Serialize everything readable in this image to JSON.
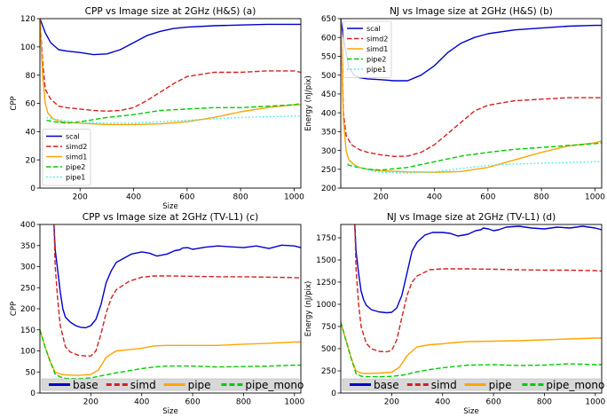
{
  "chart_data": [
    {
      "type": "line",
      "title": "CPP vs Image size at 2GHz (H&S) (a)",
      "xlabel": "Size",
      "ylabel": "CPP",
      "xlim": [
        50,
        1025
      ],
      "ylim": [
        0,
        120
      ],
      "xticks": [
        200,
        400,
        600,
        800,
        1000
      ],
      "yticks": [
        0,
        20,
        40,
        60,
        80,
        100,
        120
      ],
      "legend": "lower-left",
      "series": [
        {
          "name": "scal",
          "color": "#0000cc",
          "dash": "solid",
          "x": [
            50,
            70,
            90,
            120,
            150,
            200,
            250,
            300,
            350,
            400,
            450,
            500,
            550,
            600,
            700,
            800,
            900,
            1000,
            1025
          ],
          "y": [
            120,
            110,
            103,
            98,
            97,
            96,
            94.5,
            95,
            98,
            103,
            108,
            111,
            113,
            114,
            115,
            115.5,
            116,
            116,
            116
          ]
        },
        {
          "name": "simd2",
          "color": "#d62020",
          "dash": "dashed",
          "x": [
            50,
            60,
            70,
            90,
            120,
            150,
            200,
            250,
            300,
            350,
            400,
            450,
            500,
            550,
            600,
            700,
            800,
            900,
            1000,
            1025
          ],
          "y": [
            120,
            90,
            70,
            63,
            58,
            57,
            56,
            55,
            54.5,
            55,
            57,
            62,
            68,
            74,
            79,
            82,
            82,
            83,
            83,
            82
          ]
        },
        {
          "name": "simd1",
          "color": "#ffa500",
          "dash": "solid",
          "x": [
            50,
            60,
            70,
            80,
            100,
            120,
            150,
            200,
            300,
            400,
            500,
            600,
            700,
            800,
            900,
            1000,
            1025
          ],
          "y": [
            120,
            80,
            60,
            53,
            49,
            47.5,
            46.5,
            46,
            45,
            45,
            45.5,
            47,
            50,
            54,
            57,
            59,
            59
          ]
        },
        {
          "name": "pipe2",
          "color": "#00cc00",
          "dash": "dashed",
          "x": [
            75,
            100,
            150,
            200,
            300,
            400,
            500,
            600,
            700,
            800,
            900,
            1000,
            1025
          ],
          "y": [
            48,
            47,
            46,
            47,
            50,
            52,
            55,
            56,
            57,
            57,
            58,
            59,
            60
          ]
        },
        {
          "name": "pipe1",
          "color": "#33eeee",
          "dash": "dotted",
          "x": [
            75,
            100,
            150,
            200,
            300,
            400,
            500,
            600,
            700,
            800,
            900,
            1000,
            1025
          ],
          "y": [
            50,
            49,
            47.5,
            46.5,
            46,
            46,
            47,
            48,
            49,
            50,
            50.5,
            51,
            51
          ]
        }
      ]
    },
    {
      "type": "line",
      "title": "NJ vs Image size at 2GHz (H&S) (b)",
      "xlabel": "",
      "ylabel": "Energy (nJ/pix)",
      "xlim": [
        50,
        1025
      ],
      "ylim": [
        200,
        650
      ],
      "xticks": [
        200,
        400,
        600,
        800,
        1000
      ],
      "yticks": [
        200,
        250,
        300,
        350,
        400,
        450,
        500,
        550,
        600,
        650
      ],
      "legend": "upper-left",
      "series": [
        {
          "name": "scal",
          "color": "#0000cc",
          "dash": "solid",
          "x": [
            50,
            60,
            70,
            80,
            100,
            120,
            150,
            200,
            250,
            300,
            350,
            400,
            450,
            500,
            550,
            600,
            700,
            800,
            900,
            1000,
            1025
          ],
          "y": [
            650,
            600,
            560,
            520,
            500,
            493,
            490,
            488,
            485,
            485,
            500,
            525,
            560,
            585,
            600,
            610,
            620,
            625,
            630,
            632,
            632
          ]
        },
        {
          "name": "simd2",
          "color": "#d62020",
          "dash": "dashed",
          "x": [
            50,
            60,
            70,
            90,
            120,
            150,
            200,
            250,
            300,
            350,
            400,
            450,
            500,
            550,
            600,
            700,
            800,
            900,
            1000,
            1025
          ],
          "y": [
            650,
            400,
            340,
            315,
            302,
            295,
            288,
            284,
            285,
            295,
            315,
            345,
            375,
            405,
            420,
            432,
            436,
            440,
            440,
            440
          ]
        },
        {
          "name": "simd1",
          "color": "#ffa500",
          "dash": "solid",
          "x": [
            50,
            60,
            70,
            80,
            100,
            120,
            150,
            200,
            300,
            400,
            500,
            600,
            700,
            800,
            900,
            1000,
            1025
          ],
          "y": [
            650,
            380,
            300,
            275,
            262,
            255,
            250,
            246,
            243,
            242,
            244,
            255,
            275,
            295,
            312,
            320,
            325
          ]
        },
        {
          "name": "pipe2",
          "color": "#00cc00",
          "dash": "dashed",
          "x": [
            75,
            100,
            150,
            200,
            300,
            400,
            500,
            600,
            700,
            800,
            900,
            1000,
            1025
          ],
          "y": [
            262,
            257,
            250,
            248,
            255,
            270,
            285,
            295,
            303,
            308,
            313,
            318,
            320
          ]
        },
        {
          "name": "pipe1",
          "color": "#33eeee",
          "dash": "dotted",
          "x": [
            75,
            100,
            150,
            200,
            300,
            400,
            500,
            600,
            700,
            800,
            900,
            1000,
            1025
          ],
          "y": [
            265,
            258,
            248,
            242,
            240,
            243,
            252,
            260,
            264,
            266,
            268,
            270,
            270
          ]
        }
      ]
    },
    {
      "type": "line",
      "title": "CPP vs Image size at 2GHz (TV-L1) (c)",
      "xlabel": "Size",
      "ylabel": "CPP",
      "xlim": [
        0,
        1025
      ],
      "ylim": [
        0,
        400
      ],
      "xticks": [
        200,
        400,
        600,
        800,
        1000
      ],
      "yticks": [
        0,
        50,
        100,
        150,
        200,
        250,
        300,
        350,
        400
      ],
      "legend": "bottom",
      "series": [
        {
          "name": "base",
          "color": "#0000cc",
          "dash": "solid",
          "x": [
            55,
            60,
            70,
            80,
            90,
            100,
            120,
            140,
            160,
            180,
            200,
            220,
            240,
            260,
            280,
            300,
            330,
            360,
            400,
            430,
            460,
            500,
            530,
            550,
            560,
            580,
            600,
            620,
            650,
            700,
            750,
            800,
            850,
            900,
            950,
            1000,
            1025
          ],
          "y": [
            400,
            340,
            290,
            240,
            200,
            180,
            168,
            160,
            156,
            155,
            160,
            175,
            210,
            262,
            290,
            310,
            320,
            330,
            335,
            332,
            325,
            330,
            338,
            340,
            344,
            345,
            341,
            343,
            346,
            349,
            347,
            345,
            349,
            343,
            351,
            349,
            345
          ]
        },
        {
          "name": "simd",
          "color": "#d62020",
          "dash": "dashed",
          "x": [
            55,
            60,
            70,
            80,
            100,
            120,
            150,
            180,
            200,
            220,
            240,
            260,
            280,
            300,
            350,
            400,
            450,
            500,
            600,
            700,
            800,
            900,
            1000,
            1025
          ],
          "y": [
            400,
            300,
            220,
            160,
            110,
            97,
            90,
            88,
            88,
            100,
            140,
            190,
            225,
            245,
            265,
            275,
            278,
            278,
            277,
            276,
            276,
            275,
            274,
            273
          ]
        },
        {
          "name": "pipe",
          "color": "#ffa500",
          "dash": "solid",
          "x": [
            0,
            20,
            40,
            60,
            80,
            100,
            150,
            200,
            230,
            260,
            300,
            350,
            400,
            450,
            500,
            600,
            700,
            800,
            900,
            1000,
            1025
          ],
          "y": [
            150,
            110,
            75,
            50,
            45,
            43,
            42,
            44,
            55,
            85,
            100,
            103,
            106,
            112,
            113,
            113,
            113,
            116,
            118,
            121,
            121
          ]
        },
        {
          "name": "pipe_mono",
          "color": "#00cc00",
          "dash": "dashed",
          "x": [
            0,
            20,
            40,
            60,
            80,
            100,
            150,
            200,
            250,
            300,
            350,
            400,
            450,
            500,
            600,
            700,
            800,
            900,
            1000,
            1025
          ],
          "y": [
            150,
            110,
            75,
            45,
            38,
            35,
            34,
            36,
            42,
            48,
            53,
            58,
            62,
            64,
            64,
            62,
            63,
            64,
            66,
            66
          ]
        }
      ]
    },
    {
      "type": "line",
      "title": "NJ vs Image size at 2GHz (TV-L1) (d)",
      "xlabel": "Size",
      "ylabel": "Energy (nJ/pix)",
      "xlim": [
        0,
        1025
      ],
      "ylim": [
        0,
        1900
      ],
      "xticks": [
        200,
        400,
        600,
        800,
        1000
      ],
      "yticks": [
        0,
        250,
        500,
        750,
        1000,
        1250,
        1500,
        1750
      ],
      "legend": "bottom",
      "series": [
        {
          "name": "base",
          "color": "#0000cc",
          "dash": "solid",
          "x": [
            55,
            60,
            70,
            80,
            90,
            100,
            120,
            150,
            180,
            200,
            220,
            240,
            260,
            280,
            300,
            330,
            360,
            400,
            430,
            460,
            500,
            530,
            550,
            560,
            580,
            600,
            620,
            650,
            700,
            750,
            800,
            850,
            900,
            950,
            1000,
            1025
          ],
          "y": [
            1900,
            1600,
            1350,
            1150,
            1050,
            990,
            940,
            915,
            905,
            910,
            960,
            1100,
            1350,
            1600,
            1700,
            1780,
            1810,
            1810,
            1800,
            1770,
            1790,
            1830,
            1840,
            1860,
            1850,
            1830,
            1840,
            1870,
            1880,
            1860,
            1850,
            1870,
            1860,
            1880,
            1860,
            1840
          ]
        },
        {
          "name": "simd",
          "color": "#d62020",
          "dash": "dashed",
          "x": [
            55,
            60,
            70,
            80,
            100,
            120,
            150,
            180,
            200,
            220,
            240,
            260,
            280,
            300,
            350,
            400,
            450,
            500,
            600,
            700,
            800,
            900,
            1000,
            1025
          ],
          "y": [
            1900,
            1400,
            1000,
            750,
            560,
            500,
            470,
            465,
            480,
            600,
            850,
            1100,
            1250,
            1320,
            1390,
            1400,
            1400,
            1400,
            1395,
            1390,
            1385,
            1385,
            1380,
            1375
          ]
        },
        {
          "name": "pipe",
          "color": "#ffa500",
          "dash": "solid",
          "x": [
            0,
            20,
            40,
            60,
            80,
            100,
            150,
            200,
            230,
            260,
            300,
            350,
            400,
            450,
            500,
            600,
            700,
            800,
            900,
            1000,
            1025
          ],
          "y": [
            800,
            600,
            400,
            250,
            225,
            220,
            225,
            235,
            290,
            420,
            520,
            545,
            555,
            570,
            580,
            585,
            590,
            600,
            610,
            620,
            620
          ]
        },
        {
          "name": "pipe_mono",
          "color": "#00cc00",
          "dash": "dashed",
          "x": [
            0,
            20,
            40,
            60,
            80,
            100,
            150,
            200,
            250,
            300,
            350,
            400,
            450,
            500,
            600,
            700,
            800,
            900,
            1000,
            1025
          ],
          "y": [
            800,
            600,
            400,
            220,
            190,
            185,
            183,
            188,
            205,
            240,
            265,
            285,
            300,
            315,
            320,
            310,
            315,
            330,
            320,
            320
          ]
        }
      ]
    }
  ]
}
